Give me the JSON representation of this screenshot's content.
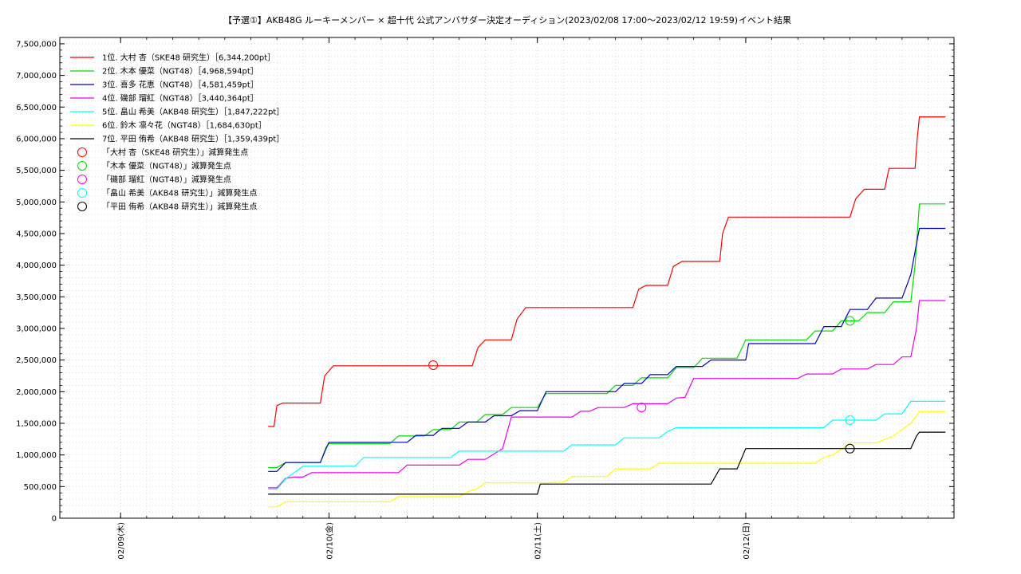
{
  "chart_data": {
    "type": "line",
    "title": "【予選①】AKB48G ルーキーメンバー × 超十代 公式アンバサダー決定オーディション(2023/02/08 17:00〜2023/02/12 19:59)",
    "subtitle": "イベント結果",
    "ylim": [
      0,
      7600000
    ],
    "xlim": [
      "2023-02-08 17:00",
      "2023-02-12 23:59"
    ],
    "grid": true,
    "legend_position": "top-left",
    "x_tick_labels": [
      {
        "label": "02/09(木)",
        "at": "2023-02-09 00:00"
      },
      {
        "label": "02/10(金)",
        "at": "2023-02-10 00:00"
      },
      {
        "label": "02/11(土)",
        "at": "2023-02-11 00:00"
      },
      {
        "label": "02/12(日)",
        "at": "2023-02-12 00:00"
      }
    ],
    "y_ticks": [
      0,
      500000,
      1000000,
      1500000,
      2000000,
      2500000,
      3000000,
      3500000,
      4000000,
      4500000,
      5000000,
      5500000,
      6000000,
      6500000,
      7000000,
      7500000
    ],
    "y_tick_labels": [
      "0",
      "500,000",
      "1,000,000",
      "1,500,000",
      "2,000,000",
      "2,500,000",
      "3,000,000",
      "3,500,000",
      "4,000,000",
      "4,500,000",
      "5,000,000",
      "5,500,000",
      "6,000,000",
      "6,500,000",
      "7,000,000",
      "7,500,000"
    ],
    "series": [
      {
        "name": "1位. 大村 杏（SKE48 研究生）［6,344,200pt］",
        "color": "#ff0000",
        "points": [
          [
            "2023-02-09 17:00",
            1450000
          ],
          [
            "2023-02-09 17:40",
            1450000
          ],
          [
            "2023-02-09 18:00",
            1780000
          ],
          [
            "2023-02-09 18:40",
            1820000
          ],
          [
            "2023-02-09 23:00",
            1820000
          ],
          [
            "2023-02-09 23:30",
            2250000
          ],
          [
            "2023-02-10 00:30",
            2410000
          ],
          [
            "2023-02-10 07:00",
            2410000
          ],
          [
            "2023-02-10 12:00",
            2410000
          ],
          [
            "2023-02-10 16:30",
            2410000
          ],
          [
            "2023-02-10 17:10",
            2700000
          ],
          [
            "2023-02-10 18:00",
            2820000
          ],
          [
            "2023-02-10 21:00",
            2820000
          ],
          [
            "2023-02-10 21:40",
            3150000
          ],
          [
            "2023-02-10 22:40",
            3330000
          ],
          [
            "2023-02-11 11:00",
            3330000
          ],
          [
            "2023-02-11 11:40",
            3620000
          ],
          [
            "2023-02-11 12:30",
            3680000
          ],
          [
            "2023-02-11 15:00",
            3680000
          ],
          [
            "2023-02-11 15:40",
            3980000
          ],
          [
            "2023-02-11 16:40",
            4060000
          ],
          [
            "2023-02-11 21:00",
            4060000
          ],
          [
            "2023-02-11 21:20",
            4500000
          ],
          [
            "2023-02-11 22:00",
            4760000
          ],
          [
            "2023-02-12 12:00",
            4760000
          ],
          [
            "2023-02-12 12:40",
            5050000
          ],
          [
            "2023-02-12 13:40",
            5200000
          ],
          [
            "2023-02-12 16:00",
            5200000
          ],
          [
            "2023-02-12 16:30",
            5530000
          ],
          [
            "2023-02-12 19:30",
            5530000
          ],
          [
            "2023-02-12 19:45",
            6000000
          ],
          [
            "2023-02-12 20:00",
            6344200
          ],
          [
            "2023-02-12 23:00",
            6344200
          ]
        ]
      },
      {
        "name": "2位. 木本 優菜（NGT48）［4,968,594pt］",
        "color": "#00dd00",
        "points": [
          [
            "2023-02-09 17:00",
            800000
          ],
          [
            "2023-02-09 18:00",
            800000
          ],
          [
            "2023-02-09 19:00",
            880000
          ],
          [
            "2023-02-09 23:00",
            880000
          ],
          [
            "2023-02-09 23:40",
            1120000
          ],
          [
            "2023-02-10 00:00",
            1180000
          ],
          [
            "2023-02-10 07:00",
            1180000
          ],
          [
            "2023-02-10 08:00",
            1300000
          ],
          [
            "2023-02-10 11:00",
            1300000
          ],
          [
            "2023-02-10 12:00",
            1400000
          ],
          [
            "2023-02-10 14:00",
            1400000
          ],
          [
            "2023-02-10 15:00",
            1520000
          ],
          [
            "2023-02-10 17:00",
            1520000
          ],
          [
            "2023-02-10 18:00",
            1640000
          ],
          [
            "2023-02-10 20:00",
            1640000
          ],
          [
            "2023-02-10 21:00",
            1750000
          ],
          [
            "2023-02-11 00:00",
            1750000
          ],
          [
            "2023-02-11 01:00",
            1970000
          ],
          [
            "2023-02-11 08:00",
            1970000
          ],
          [
            "2023-02-11 09:00",
            2100000
          ],
          [
            "2023-02-11 11:00",
            2100000
          ],
          [
            "2023-02-11 12:00",
            2220000
          ],
          [
            "2023-02-11 15:00",
            2220000
          ],
          [
            "2023-02-11 16:00",
            2380000
          ],
          [
            "2023-02-11 18:00",
            2380000
          ],
          [
            "2023-02-11 19:00",
            2530000
          ],
          [
            "2023-02-11 23:00",
            2530000
          ],
          [
            "2023-02-12 00:00",
            2820000
          ],
          [
            "2023-02-12 07:00",
            2820000
          ],
          [
            "2023-02-12 08:00",
            2960000
          ],
          [
            "2023-02-12 10:00",
            2960000
          ],
          [
            "2023-02-12 11:00",
            3120000
          ],
          [
            "2023-02-12 13:00",
            3120000
          ],
          [
            "2023-02-12 14:00",
            3250000
          ],
          [
            "2023-02-12 16:00",
            3250000
          ],
          [
            "2023-02-12 17:00",
            3420000
          ],
          [
            "2023-02-12 19:00",
            3420000
          ],
          [
            "2023-02-12 19:30",
            4000000
          ],
          [
            "2023-02-12 20:00",
            4968594
          ],
          [
            "2023-02-12 23:00",
            4968594
          ]
        ]
      },
      {
        "name": "3位. 喜多 花恵（NGT48）［4,581,459pt］",
        "color": "#0000cc",
        "points": [
          [
            "2023-02-09 17:00",
            740000
          ],
          [
            "2023-02-09 18:00",
            740000
          ],
          [
            "2023-02-09 19:00",
            880000
          ],
          [
            "2023-02-09 23:00",
            880000
          ],
          [
            "2023-02-09 23:40",
            1100000
          ],
          [
            "2023-02-10 00:00",
            1200000
          ],
          [
            "2023-02-10 09:00",
            1200000
          ],
          [
            "2023-02-10 10:00",
            1310000
          ],
          [
            "2023-02-10 12:00",
            1310000
          ],
          [
            "2023-02-10 13:00",
            1420000
          ],
          [
            "2023-02-10 15:00",
            1420000
          ],
          [
            "2023-02-10 16:00",
            1520000
          ],
          [
            "2023-02-10 18:00",
            1520000
          ],
          [
            "2023-02-10 19:00",
            1620000
          ],
          [
            "2023-02-10 21:00",
            1620000
          ],
          [
            "2023-02-10 22:00",
            1700000
          ],
          [
            "2023-02-11 00:00",
            1700000
          ],
          [
            "2023-02-11 01:00",
            2000000
          ],
          [
            "2023-02-11 09:00",
            2000000
          ],
          [
            "2023-02-11 10:00",
            2130000
          ],
          [
            "2023-02-11 12:00",
            2130000
          ],
          [
            "2023-02-11 13:00",
            2270000
          ],
          [
            "2023-02-11 15:00",
            2270000
          ],
          [
            "2023-02-11 16:00",
            2400000
          ],
          [
            "2023-02-11 19:00",
            2400000
          ],
          [
            "2023-02-11 20:00",
            2500000
          ],
          [
            "2023-02-12 00:00",
            2500000
          ],
          [
            "2023-02-12 00:20",
            2760000
          ],
          [
            "2023-02-12 08:00",
            2760000
          ],
          [
            "2023-02-12 09:00",
            3030000
          ],
          [
            "2023-02-12 11:00",
            3030000
          ],
          [
            "2023-02-12 12:00",
            3300000
          ],
          [
            "2023-02-12 14:00",
            3300000
          ],
          [
            "2023-02-12 15:00",
            3480000
          ],
          [
            "2023-02-12 18:00",
            3480000
          ],
          [
            "2023-02-12 19:00",
            3850000
          ],
          [
            "2023-02-12 20:00",
            4581459
          ],
          [
            "2023-02-12 23:00",
            4581459
          ]
        ]
      },
      {
        "name": "4位. 磯部 瑠紅（NGT48）［3,440,364pt］",
        "color": "#ee00ee",
        "points": [
          [
            "2023-02-09 17:00",
            480000
          ],
          [
            "2023-02-09 18:00",
            480000
          ],
          [
            "2023-02-09 19:00",
            630000
          ],
          [
            "2023-02-09 20:00",
            650000
          ],
          [
            "2023-02-09 21:00",
            650000
          ],
          [
            "2023-02-09 22:00",
            720000
          ],
          [
            "2023-02-10 08:00",
            720000
          ],
          [
            "2023-02-10 09:00",
            840000
          ],
          [
            "2023-02-10 15:00",
            840000
          ],
          [
            "2023-02-10 16:00",
            930000
          ],
          [
            "2023-02-10 18:00",
            930000
          ],
          [
            "2023-02-10 20:00",
            1100000
          ],
          [
            "2023-02-10 21:00",
            1600000
          ],
          [
            "2023-02-11 04:00",
            1600000
          ],
          [
            "2023-02-11 05:00",
            1690000
          ],
          [
            "2023-02-11 06:00",
            1690000
          ],
          [
            "2023-02-11 07:00",
            1750000
          ],
          [
            "2023-02-11 10:00",
            1750000
          ],
          [
            "2023-02-11 11:00",
            1810000
          ],
          [
            "2023-02-11 15:00",
            1810000
          ],
          [
            "2023-02-11 16:00",
            1900000
          ],
          [
            "2023-02-11 17:00",
            1910000
          ],
          [
            "2023-02-11 18:00",
            2210000
          ],
          [
            "2023-02-12 06:00",
            2210000
          ],
          [
            "2023-02-12 07:00",
            2280000
          ],
          [
            "2023-02-12 10:00",
            2280000
          ],
          [
            "2023-02-12 11:00",
            2360000
          ],
          [
            "2023-02-12 14:00",
            2360000
          ],
          [
            "2023-02-12 15:00",
            2430000
          ],
          [
            "2023-02-12 17:00",
            2430000
          ],
          [
            "2023-02-12 18:00",
            2550000
          ],
          [
            "2023-02-12 19:00",
            2550000
          ],
          [
            "2023-02-12 19:40",
            3000000
          ],
          [
            "2023-02-12 20:00",
            3440364
          ],
          [
            "2023-02-12 23:00",
            3440364
          ]
        ]
      },
      {
        "name": "5位. 畠山 希美（AKB48 研究生）［1,847,222pt］",
        "color": "#00ffff",
        "points": [
          [
            "2023-02-09 17:00",
            460000
          ],
          [
            "2023-02-09 18:00",
            460000
          ],
          [
            "2023-02-09 19:00",
            620000
          ],
          [
            "2023-02-09 21:00",
            820000
          ],
          [
            "2023-02-10 03:00",
            820000
          ],
          [
            "2023-02-10 04:00",
            960000
          ],
          [
            "2023-02-10 14:00",
            960000
          ],
          [
            "2023-02-10 15:00",
            1060000
          ],
          [
            "2023-02-11 03:00",
            1060000
          ],
          [
            "2023-02-11 04:00",
            1160000
          ],
          [
            "2023-02-11 09:00",
            1160000
          ],
          [
            "2023-02-11 10:00",
            1270000
          ],
          [
            "2023-02-11 14:00",
            1270000
          ],
          [
            "2023-02-11 15:00",
            1370000
          ],
          [
            "2023-02-11 16:00",
            1430000
          ],
          [
            "2023-02-12 09:00",
            1430000
          ],
          [
            "2023-02-12 10:00",
            1550000
          ],
          [
            "2023-02-12 15:00",
            1550000
          ],
          [
            "2023-02-12 16:00",
            1650000
          ],
          [
            "2023-02-12 18:00",
            1650000
          ],
          [
            "2023-02-12 19:00",
            1847222
          ],
          [
            "2023-02-12 23:00",
            1847222
          ]
        ]
      },
      {
        "name": "6位. 鈴木 凛々花（NGT48）［1,684,630pt］",
        "color": "#ffff00",
        "points": [
          [
            "2023-02-09 17:00",
            180000
          ],
          [
            "2023-02-09 18:00",
            180000
          ],
          [
            "2023-02-09 19:00",
            260000
          ],
          [
            "2023-02-10 07:00",
            260000
          ],
          [
            "2023-02-10 08:00",
            340000
          ],
          [
            "2023-02-10 15:00",
            340000
          ],
          [
            "2023-02-10 16:00",
            420000
          ],
          [
            "2023-02-10 17:00",
            460000
          ],
          [
            "2023-02-10 18:00",
            560000
          ],
          [
            "2023-02-11 01:00",
            560000
          ],
          [
            "2023-02-11 03:00",
            570000
          ],
          [
            "2023-02-11 04:00",
            660000
          ],
          [
            "2023-02-11 08:00",
            660000
          ],
          [
            "2023-02-11 09:00",
            780000
          ],
          [
            "2023-02-11 13:00",
            780000
          ],
          [
            "2023-02-11 14:00",
            870000
          ],
          [
            "2023-02-12 03:00",
            870000
          ],
          [
            "2023-02-12 08:00",
            870000
          ],
          [
            "2023-02-12 09:00",
            960000
          ],
          [
            "2023-02-12 10:00",
            1000000
          ],
          [
            "2023-02-12 11:00",
            1090000
          ],
          [
            "2023-02-12 12:00",
            1190000
          ],
          [
            "2023-02-12 15:00",
            1190000
          ],
          [
            "2023-02-12 17:00",
            1300000
          ],
          [
            "2023-02-12 19:00",
            1500000
          ],
          [
            "2023-02-12 20:00",
            1684630
          ],
          [
            "2023-02-12 23:00",
            1684630
          ]
        ]
      },
      {
        "name": "7位. 平田 侑希（AKB48 研究生）［1,359,439pt］",
        "color": "#000000",
        "points": [
          [
            "2023-02-09 17:00",
            380000
          ],
          [
            "2023-02-10 18:00",
            380000
          ],
          [
            "2023-02-11 00:00",
            380000
          ],
          [
            "2023-02-11 00:20",
            540000
          ],
          [
            "2023-02-11 20:00",
            540000
          ],
          [
            "2023-02-11 21:00",
            780000
          ],
          [
            "2023-02-11 23:00",
            780000
          ],
          [
            "2023-02-12 00:00",
            1100000
          ],
          [
            "2023-02-12 18:00",
            1100000
          ],
          [
            "2023-02-12 19:00",
            1100000
          ],
          [
            "2023-02-12 19:40",
            1300000
          ],
          [
            "2023-02-12 20:00",
            1359439
          ],
          [
            "2023-02-12 23:00",
            1359439
          ]
        ]
      }
    ],
    "markers": [
      {
        "name": "「大村 杏（SKE48 研究生）」減算発生点",
        "color": "#ff0000",
        "x": "2023-02-10 12:00",
        "y": 2420000
      },
      {
        "name": "「木本 優菜（NGT48）」減算発生点",
        "color": "#00dd00",
        "x": "2023-02-12 12:00",
        "y": 3120000
      },
      {
        "name": "「磯部 瑠紅（NGT48）」減算発生点",
        "color": "#ee00ee",
        "x": "2023-02-11 12:00",
        "y": 1750000
      },
      {
        "name": "「畠山 希美（AKB48 研究生）」減算発生点",
        "color": "#00ffff",
        "x": "2023-02-12 12:00",
        "y": 1550000
      },
      {
        "name": "「平田 侑希（AKB48 研究生）」減算発生点",
        "color": "#000000",
        "x": "2023-02-12 12:00",
        "y": 1100000
      }
    ]
  }
}
